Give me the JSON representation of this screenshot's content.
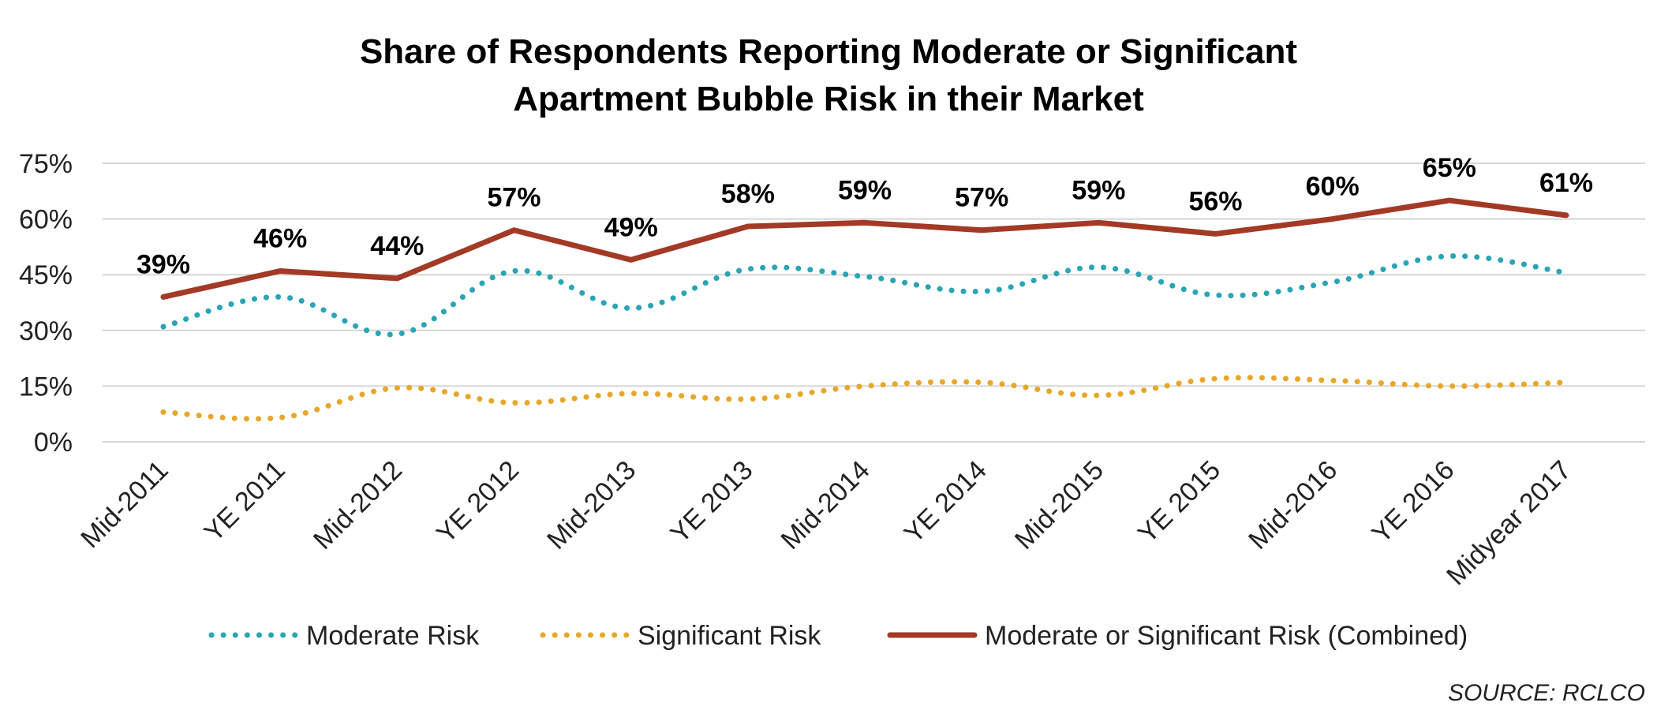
{
  "chart_data": {
    "type": "line",
    "title_lines": [
      "Share of Respondents Reporting Moderate or Significant",
      "Apartment Bubble Risk in their Market"
    ],
    "categories": [
      "Mid-2011",
      "YE 2011",
      "Mid-2012",
      "YE 2012",
      "Mid-2013",
      "YE 2013",
      "Mid-2014",
      "YE 2014",
      "Mid-2015",
      "YE 2015",
      "Mid-2016",
      "YE 2016",
      "Midyear 2017"
    ],
    "ylim": [
      0,
      75
    ],
    "yticks": [
      0,
      15,
      30,
      45,
      60,
      75
    ],
    "ytick_labels": [
      "0%",
      "15%",
      "30%",
      "45%",
      "60%",
      "75%"
    ],
    "grid": true,
    "legend_position": "bottom",
    "series": [
      {
        "name": "Moderate Risk",
        "style": "dotted",
        "color": "#2aa5b5",
        "values": [
          31,
          39,
          29,
          46,
          36,
          46.5,
          44.5,
          40.5,
          47,
          39.5,
          43,
          50,
          45.5
        ]
      },
      {
        "name": "Significant Risk",
        "style": "dotted",
        "color": "#e8a72b",
        "values": [
          8,
          6.5,
          14.5,
          10.5,
          13,
          11.5,
          15,
          16,
          12.5,
          17,
          16.5,
          15,
          16
        ]
      },
      {
        "name": "Moderate or Significant Risk (Combined)",
        "style": "solid",
        "color": "#a33a26",
        "values": [
          39,
          46,
          44,
          57,
          49,
          58,
          59,
          57,
          59,
          56,
          60,
          65,
          61
        ]
      }
    ],
    "data_labels": [
      "39%",
      "46%",
      "44%",
      "57%",
      "49%",
      "58%",
      "59%",
      "57%",
      "59%",
      "56%",
      "60%",
      "65%",
      "61%"
    ],
    "source": "SOURCE: RCLCO"
  }
}
